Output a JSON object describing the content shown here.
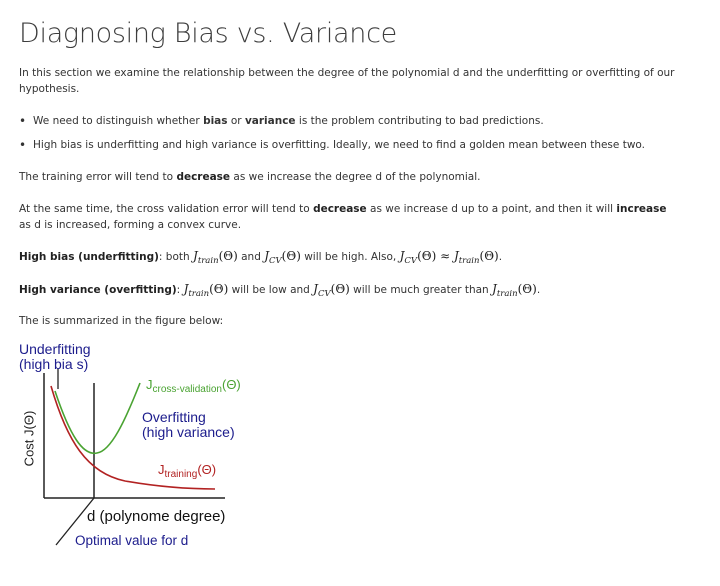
{
  "title": "Diagnosing Bias vs. Variance",
  "intro": "In this section we examine the relationship between the degree of the polynomial d and the underfitting or overfitting of our hypothesis.",
  "bullets": {
    "b1_pre": "We need to distinguish whether ",
    "b1_bold1": "bias",
    "b1_mid": " or ",
    "b1_bold2": "variance",
    "b1_post": " is the problem contributing to bad predictions.",
    "b2": "High bias is underfitting and high variance is overfitting. Ideally, we need to find a golden mean between these two."
  },
  "p_training": {
    "pre": "The training error will tend to ",
    "bold": "decrease",
    "post": " as we increase the degree d of the polynomial."
  },
  "p_cv": {
    "pre": "At the same time, the cross validation error will tend to ",
    "bold1": "decrease",
    "mid": " as we increase d up to a point, and then it will ",
    "bold2": "increase",
    "post": " as d is increased, forming a convex curve."
  },
  "high_bias": {
    "label": "High bias (underfitting)",
    "t1": ": both ",
    "t2": " and ",
    "t3": " will be high. Also, ",
    "t4": "."
  },
  "high_variance": {
    "label": "High variance (overfitting)",
    "t1": ": ",
    "t2": " will be low and ",
    "t3": " will be much greater than ",
    "t4": "."
  },
  "math": {
    "J": "J",
    "train": "train",
    "cv": "CV",
    "theta": "(Θ)",
    "approx": " ≈ "
  },
  "summary": "The is summarized in the figure below:",
  "figure": {
    "underfitting_1": "Underfitting",
    "underfitting_2": "(high bia s)",
    "y_label": "Cost J(Θ)",
    "j_cv_main": "J",
    "j_cv_sub": "cross-validation",
    "j_cv_theta": "(Θ)",
    "overfitting_1": "Overfitting",
    "overfitting_2": "(high variance)",
    "j_train_main": "J",
    "j_train_sub": "training",
    "j_train_theta": "(Θ)",
    "x_label": "d (polynome degree)",
    "optimal": "Optimal value for d",
    "colors": {
      "blue": "#1c1c8c",
      "green": "#4aa332",
      "red": "#b22222",
      "axis": "#222222"
    }
  }
}
